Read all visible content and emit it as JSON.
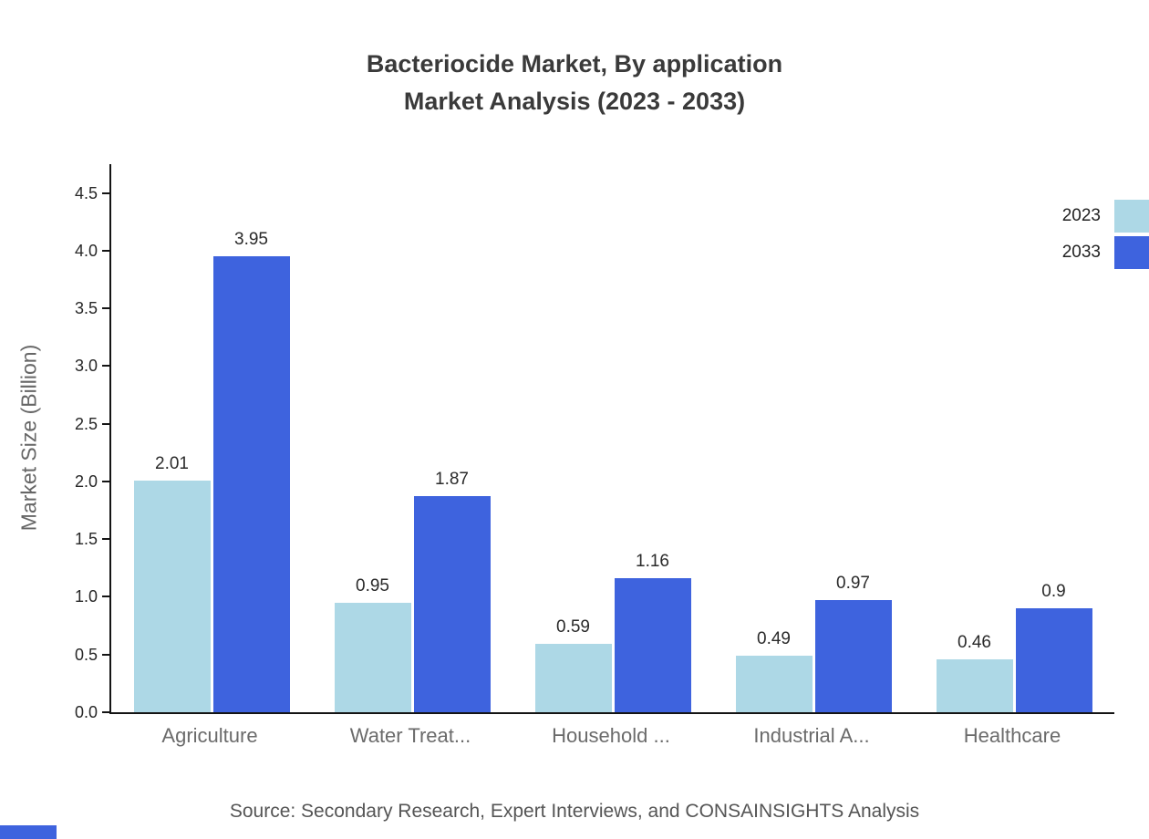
{
  "title": {
    "line1": "Bacteriocide Market, By application",
    "line2": "Market Analysis (2023 - 2033)"
  },
  "source": "Source: Secondary Research, Expert Interviews, and CONSAINSIGHTS Analysis",
  "colors": {
    "series_2023": "#ADD8E6",
    "series_2033": "#3E63DE",
    "axis": "#141414",
    "title_text": "#3a3a3a",
    "muted_text": "#6b6b6b"
  },
  "chart_data": {
    "type": "bar",
    "title": "Bacteriocide Market, By application Market Analysis (2023 - 2033)",
    "categories": [
      "Agriculture",
      "Water Treat...",
      "Household ...",
      "Industrial A...",
      "Healthcare"
    ],
    "series": [
      {
        "name": "2023",
        "color": "#ADD8E6",
        "values": [
          2.01,
          0.95,
          0.59,
          0.49,
          0.46
        ]
      },
      {
        "name": "2033",
        "color": "#3E63DE",
        "values": [
          3.95,
          1.87,
          1.16,
          0.97,
          0.9
        ]
      }
    ],
    "xlabel": "",
    "ylabel": "Market Size (Billion)",
    "ylim": [
      0,
      4.75
    ],
    "yticks": [
      0.0,
      0.5,
      1.0,
      1.5,
      2.0,
      2.5,
      3.0,
      3.5,
      4.0,
      4.5
    ],
    "grid": false,
    "legend_position": "top-right",
    "value_labels": true
  }
}
